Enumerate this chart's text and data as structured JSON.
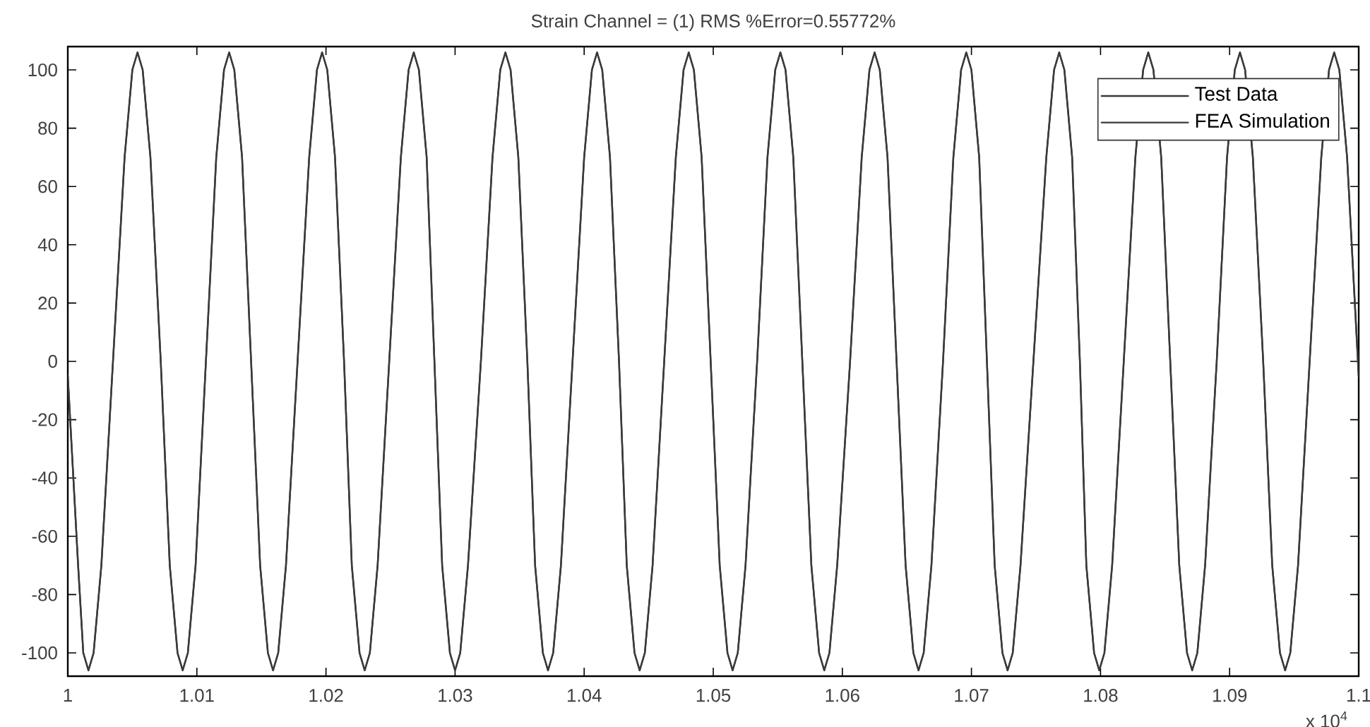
{
  "chart_data": {
    "type": "line",
    "title": "Strain Channel = (1)   RMS %Error=0.55772%",
    "x": [
      1.0,
      1.0008,
      1.0012,
      1.0016,
      1.002,
      1.0026,
      1.0035,
      1.0044,
      1.005,
      1.0054,
      1.0058,
      1.0064,
      1.0072,
      1.0079,
      1.0085,
      1.0089,
      1.0093,
      1.0099,
      1.0107,
      1.0115,
      1.0121,
      1.0125,
      1.0129,
      1.0135,
      1.0142,
      1.0149,
      1.0155,
      1.0159,
      1.0163,
      1.0169,
      1.0178,
      1.0187,
      1.0193,
      1.0197,
      1.0201,
      1.0207,
      1.0214,
      1.022,
      1.0226,
      1.023,
      1.0234,
      1.024,
      1.0249,
      1.0258,
      1.0264,
      1.0268,
      1.0272,
      1.0278,
      1.0284,
      1.029,
      1.0296,
      1.03,
      1.0304,
      1.031,
      1.032,
      1.0329,
      1.0335,
      1.0339,
      1.0343,
      1.0349,
      1.0356,
      1.0362,
      1.0368,
      1.0372,
      1.0376,
      1.0382,
      1.0391,
      1.04,
      1.0406,
      1.041,
      1.0414,
      1.042,
      1.0427,
      1.0433,
      1.0439,
      1.0443,
      1.0447,
      1.0453,
      1.0462,
      1.0471,
      1.0477,
      1.0481,
      1.0485,
      1.0491,
      1.0498,
      1.0505,
      1.0511,
      1.0515,
      1.0519,
      1.0525,
      1.0534,
      1.0542,
      1.0548,
      1.0552,
      1.0556,
      1.0562,
      1.0569,
      1.0576,
      1.0582,
      1.0586,
      1.059,
      1.0596,
      1.0606,
      1.0615,
      1.0621,
      1.0625,
      1.0629,
      1.0635,
      1.0642,
      1.0649,
      1.0655,
      1.0659,
      1.0663,
      1.0669,
      1.0678,
      1.0686,
      1.0692,
      1.0696,
      1.07,
      1.0706,
      1.0712,
      1.0718,
      1.0724,
      1.0728,
      1.0732,
      1.0738,
      1.0748,
      1.0758,
      1.0764,
      1.0768,
      1.0772,
      1.0778,
      1.0784,
      1.0789,
      1.0795,
      1.0799,
      1.0803,
      1.0809,
      1.0818,
      1.0827,
      1.0833,
      1.0837,
      1.0841,
      1.0847,
      1.0854,
      1.0861,
      1.0867,
      1.0871,
      1.0875,
      1.0881,
      1.089,
      1.0898,
      1.0904,
      1.0908,
      1.0912,
      1.0918,
      1.0926,
      1.0933,
      1.0939,
      1.0943,
      1.0947,
      1.0953,
      1.0962,
      1.0971,
      1.0977,
      1.0981,
      1.0985,
      1.0991,
      1.1
    ],
    "series": [
      {
        "name": "Test Data",
        "color": "#3a3a3a",
        "values": [
          -5,
          -70,
          -100,
          -106,
          -100,
          -70,
          0,
          70,
          100,
          106,
          100,
          70,
          0,
          -70,
          -100,
          -106,
          -100,
          -70,
          0,
          70,
          100,
          106,
          100,
          70,
          0,
          -70,
          -100,
          -106,
          -100,
          -70,
          0,
          70,
          100,
          106,
          100,
          70,
          0,
          -70,
          -100,
          -106,
          -100,
          -70,
          0,
          70,
          100,
          106,
          100,
          70,
          0,
          -70,
          -100,
          -106,
          -100,
          -70,
          0,
          70,
          100,
          106,
          100,
          70,
          0,
          -70,
          -100,
          -106,
          -100,
          -70,
          0,
          70,
          100,
          106,
          100,
          70,
          0,
          -70,
          -100,
          -106,
          -100,
          -70,
          0,
          70,
          100,
          106,
          100,
          70,
          0,
          -70,
          -100,
          -106,
          -100,
          -70,
          0,
          70,
          100,
          106,
          100,
          70,
          0,
          -70,
          -100,
          -106,
          -100,
          -70,
          0,
          70,
          100,
          106,
          100,
          70,
          0,
          -70,
          -100,
          -106,
          -100,
          -70,
          0,
          70,
          100,
          106,
          100,
          70,
          0,
          -70,
          -100,
          -106,
          -100,
          -70,
          0,
          70,
          100,
          106,
          100,
          70,
          0,
          -70,
          -100,
          -106,
          -100,
          -70,
          0,
          70,
          100,
          106,
          100,
          70,
          0,
          -70,
          -100,
          -106,
          -100,
          -70,
          0,
          70,
          100,
          106,
          100,
          70,
          0,
          -70,
          -100,
          -106,
          -100,
          -70,
          0,
          70,
          100,
          106,
          100,
          70,
          -5
        ]
      },
      {
        "name": "FEA Simulation",
        "color": "#3a3a3a",
        "values": [
          -5,
          -70,
          -100,
          -106,
          -100,
          -70,
          0,
          70,
          100,
          106,
          100,
          70,
          0,
          -70,
          -100,
          -106,
          -100,
          -70,
          0,
          70,
          100,
          106,
          100,
          70,
          0,
          -70,
          -100,
          -106,
          -100,
          -70,
          0,
          70,
          100,
          106,
          100,
          70,
          0,
          -70,
          -100,
          -106,
          -100,
          -70,
          0,
          70,
          100,
          106,
          100,
          70,
          0,
          -70,
          -100,
          -106,
          -100,
          -70,
          0,
          70,
          100,
          106,
          100,
          70,
          0,
          -70,
          -100,
          -106,
          -100,
          -70,
          0,
          70,
          100,
          106,
          100,
          70,
          0,
          -70,
          -100,
          -106,
          -100,
          -70,
          0,
          70,
          100,
          106,
          100,
          70,
          0,
          -70,
          -100,
          -106,
          -100,
          -70,
          0,
          70,
          100,
          106,
          100,
          70,
          0,
          -70,
          -100,
          -106,
          -100,
          -70,
          0,
          70,
          100,
          106,
          100,
          70,
          0,
          -70,
          -100,
          -106,
          -100,
          -70,
          0,
          70,
          100,
          106,
          100,
          70,
          0,
          -70,
          -100,
          -106,
          -100,
          -70,
          0,
          70,
          100,
          106,
          100,
          70,
          0,
          -70,
          -100,
          -106,
          -100,
          -70,
          0,
          70,
          100,
          106,
          100,
          70,
          0,
          -70,
          -100,
          -106,
          -100,
          -70,
          0,
          70,
          100,
          106,
          100,
          70,
          0,
          -70,
          -100,
          -106,
          -100,
          -70,
          0,
          70,
          100,
          106,
          100,
          70,
          -5
        ]
      }
    ],
    "xlim": [
      1.0,
      1.1
    ],
    "xticks": [
      1,
      1.01,
      1.02,
      1.03,
      1.04,
      1.05,
      1.06,
      1.07,
      1.08,
      1.09,
      1.1
    ],
    "ylim": [
      -108,
      108
    ],
    "yticks": [
      -100,
      -80,
      -60,
      -40,
      -20,
      0,
      20,
      40,
      60,
      80,
      100
    ],
    "annotations": [
      "x 10$^{4}$"
    ],
    "legend": "top right",
    "grid": false,
    "marker": "none",
    "line_style": "solid"
  }
}
